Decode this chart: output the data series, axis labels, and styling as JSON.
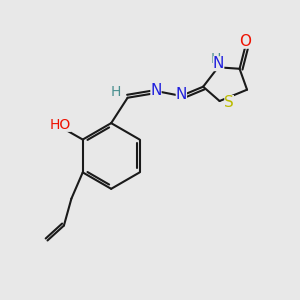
{
  "bg_color": "#e8e8e8",
  "bond_color": "#1a1a1a",
  "bond_width": 1.5,
  "atom_colors": {
    "N": "#2020dd",
    "O": "#ee1100",
    "S": "#bbbb00",
    "H_label": "#4a9090",
    "C": "#1a1a1a"
  },
  "font_size_atom": 11,
  "font_size_small": 9,
  "figsize": [
    3.0,
    3.0
  ],
  "dpi": 100,
  "xlim": [
    0.0,
    10.0
  ],
  "ylim": [
    0.0,
    10.0
  ]
}
